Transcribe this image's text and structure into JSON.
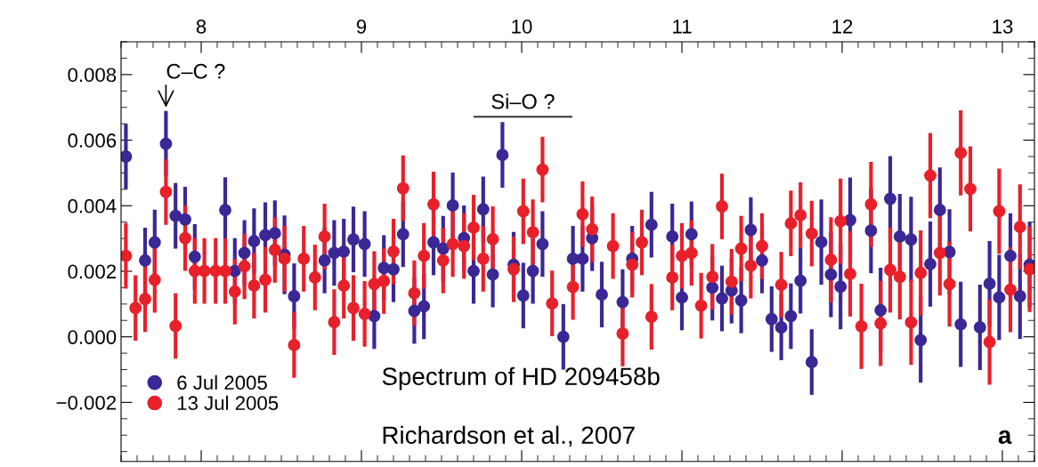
{
  "chart_data": {
    "type": "scatter",
    "x": [
      7.53,
      7.59,
      7.65,
      7.71,
      7.78,
      7.84,
      7.9,
      7.96,
      8.02,
      8.09,
      8.15,
      8.21,
      8.27,
      8.33,
      8.4,
      8.46,
      8.52,
      8.58,
      8.64,
      8.71,
      8.77,
      8.83,
      8.89,
      8.95,
      9.02,
      9.08,
      9.14,
      9.2,
      9.26,
      9.33,
      9.39,
      9.45,
      9.51,
      9.57,
      9.64,
      9.7,
      9.76,
      9.82,
      9.88,
      9.95,
      10.01,
      10.07,
      10.13,
      10.19,
      10.26,
      10.32,
      10.38,
      10.44,
      10.5,
      10.57,
      10.63,
      10.69,
      10.75,
      10.81,
      10.88,
      10.94,
      11.0,
      11.06,
      11.12,
      11.19,
      11.25,
      11.31,
      11.37,
      11.43,
      11.5,
      11.56,
      11.62,
      11.68,
      11.74,
      11.81,
      11.87,
      11.93,
      11.99,
      12.05,
      12.12,
      12.18,
      12.24,
      12.3,
      12.36,
      12.43,
      12.49,
      12.55,
      12.61,
      12.67,
      12.74,
      12.8,
      12.86,
      12.92,
      12.98,
      13.05,
      13.11,
      13.17
    ],
    "series": [
      {
        "name": "6 Jul 2005",
        "color": "#3b2795",
        "values": [
          0.0055,
          null,
          0.00233,
          0.00288,
          0.00589,
          0.00369,
          0.00358,
          0.00244,
          null,
          null,
          0.00387,
          0.00201,
          0.00256,
          0.00292,
          0.0031,
          0.00316,
          0.0025,
          0.00124,
          null,
          null,
          0.00233,
          0.00256,
          0.0026,
          0.00297,
          0.00283,
          0.00063,
          0.0021,
          0.00206,
          0.00313,
          0.00079,
          0.00093,
          0.00288,
          0.00269,
          0.00401,
          0.00301,
          0.00201,
          0.00389,
          0.0019,
          0.00555,
          0.0022,
          0.00126,
          0.00201,
          0.00283,
          null,
          0.0,
          0.00238,
          0.00238,
          0.00301,
          0.00129,
          null,
          0.00106,
          0.00238,
          null,
          0.00342,
          null,
          0.00306,
          0.0012,
          0.00313,
          null,
          0.0015,
          0.00117,
          0.00141,
          0.00111,
          0.00326,
          0.00233,
          0.00054,
          0.00029,
          0.00063,
          0.00171,
          -0.00077,
          0.00289,
          0.0019,
          0.00153,
          0.00356,
          null,
          0.00324,
          0.00081,
          0.00421,
          0.00306,
          0.00297,
          -0.0001,
          0.00222,
          0.00387,
          0.00259,
          0.00038,
          null,
          0.00029,
          0.00162,
          0.0012,
          0.00247,
          0.00124,
          0.0022
        ],
        "errors": [
          0.001,
          null,
          0.001,
          0.001,
          0.001,
          0.001,
          0.001,
          0.001,
          null,
          null,
          0.001,
          0.001,
          0.001,
          0.001,
          0.001,
          0.001,
          0.0012,
          0.001,
          null,
          null,
          0.001,
          0.001,
          0.001,
          0.001,
          0.001,
          0.001,
          0.001,
          0.001,
          0.001,
          0.001,
          0.001,
          0.001,
          0.001,
          0.001,
          0.001,
          0.001,
          0.001,
          0.001,
          0.001,
          0.001,
          0.001,
          0.001,
          0.001,
          null,
          0.001,
          0.001,
          0.001,
          0.001,
          0.001,
          null,
          0.001,
          0.001,
          null,
          0.001,
          null,
          0.001,
          0.001,
          0.001,
          null,
          0.001,
          0.001,
          0.001,
          0.001,
          0.001,
          0.001,
          0.001,
          0.001,
          0.001,
          0.001,
          0.001,
          0.0013,
          0.0013,
          0.0013,
          0.0013,
          null,
          0.0013,
          0.0013,
          0.0013,
          0.0013,
          0.0013,
          0.0013,
          0.0013,
          0.0013,
          0.0013,
          0.0013,
          null,
          0.0013,
          0.0013,
          0.0013,
          0.0013,
          0.0013,
          0.0013
        ]
      },
      {
        "name": "13 Jul 2005",
        "color": "#e8202a",
        "values": [
          0.00247,
          0.00088,
          0.00115,
          0.00174,
          0.00442,
          0.00033,
          0.00301,
          0.00201,
          0.00201,
          0.00201,
          0.00201,
          0.00138,
          0.00215,
          0.00156,
          0.00174,
          0.00265,
          0.00238,
          -0.00025,
          0.00238,
          0.00181,
          0.00306,
          0.00045,
          0.00156,
          0.00088,
          0.0007,
          0.00161,
          0.0017,
          0.0026,
          0.00453,
          0.00133,
          0.00247,
          0.00404,
          0.00233,
          0.00283,
          0.00277,
          0.00333,
          0.00238,
          0.00298,
          null,
          0.00206,
          0.00383,
          0.00319,
          0.0051,
          0.00102,
          null,
          0.00152,
          0.00374,
          0.00328,
          null,
          0.00277,
          0.0001,
          0.0022,
          0.00288,
          0.00061,
          null,
          0.00181,
          0.00247,
          0.00256,
          0.00095,
          0.00183,
          0.00398,
          0.00168,
          0.00269,
          0.00217,
          0.00277,
          null,
          0.00159,
          0.00346,
          0.00371,
          0.00315,
          null,
          0.00235,
          0.00353,
          0.00192,
          0.00032,
          0.00404,
          0.00041,
          0.00204,
          0.00183,
          0.00044,
          0.00195,
          0.00492,
          0.00256,
          0.00161,
          0.00561,
          0.00451,
          null,
          -0.00016,
          0.00383,
          0.00144,
          0.00335,
          0.00206
        ],
        "errors": [
          0.001,
          0.001,
          0.001,
          0.001,
          0.001,
          0.001,
          0.001,
          0.001,
          0.001,
          0.001,
          0.001,
          0.001,
          0.001,
          0.001,
          0.001,
          0.001,
          0.001,
          0.001,
          0.001,
          0.001,
          0.001,
          0.001,
          0.001,
          0.001,
          0.001,
          0.001,
          0.001,
          0.001,
          0.001,
          0.001,
          0.001,
          0.001,
          0.001,
          0.001,
          0.001,
          0.001,
          0.001,
          0.001,
          null,
          0.001,
          0.001,
          0.001,
          0.001,
          0.001,
          null,
          0.001,
          0.001,
          0.001,
          null,
          0.001,
          0.001,
          0.001,
          0.001,
          0.001,
          null,
          0.001,
          0.001,
          0.001,
          0.001,
          0.001,
          0.001,
          0.001,
          0.001,
          0.001,
          0.001,
          null,
          0.001,
          0.001,
          0.001,
          0.001,
          null,
          0.0013,
          0.0013,
          0.0013,
          0.0013,
          0.0013,
          0.0013,
          0.0013,
          0.0013,
          0.0013,
          0.0013,
          0.0013,
          0.0013,
          0.0013,
          0.0013,
          0.0013,
          null,
          0.0013,
          0.0013,
          0.0013,
          0.0013,
          0.0013
        ]
      }
    ],
    "xlim": [
      7.5,
      13.2
    ],
    "xticks": [
      8,
      9,
      10,
      11,
      12,
      13
    ],
    "ylim": [
      -0.0038,
      0.009
    ],
    "yticks": [
      {
        "value": -0.002,
        "label": "−0.002"
      },
      {
        "value": 0.0,
        "label": "0.000"
      },
      {
        "value": 0.002,
        "label": "0.002"
      },
      {
        "value": 0.004,
        "label": "0.004"
      },
      {
        "value": 0.006,
        "label": "0.006"
      },
      {
        "value": 0.008,
        "label": "0.008"
      }
    ],
    "marker": "circle",
    "grid": false,
    "legend": "bottom left",
    "annotations": [
      {
        "text": "C–C ?",
        "x": 7.78,
        "y": 0.007
      },
      "Si–O ?",
      "Spectrum of HD 209458b",
      "Richardson et al., 2007",
      "a"
    ]
  }
}
